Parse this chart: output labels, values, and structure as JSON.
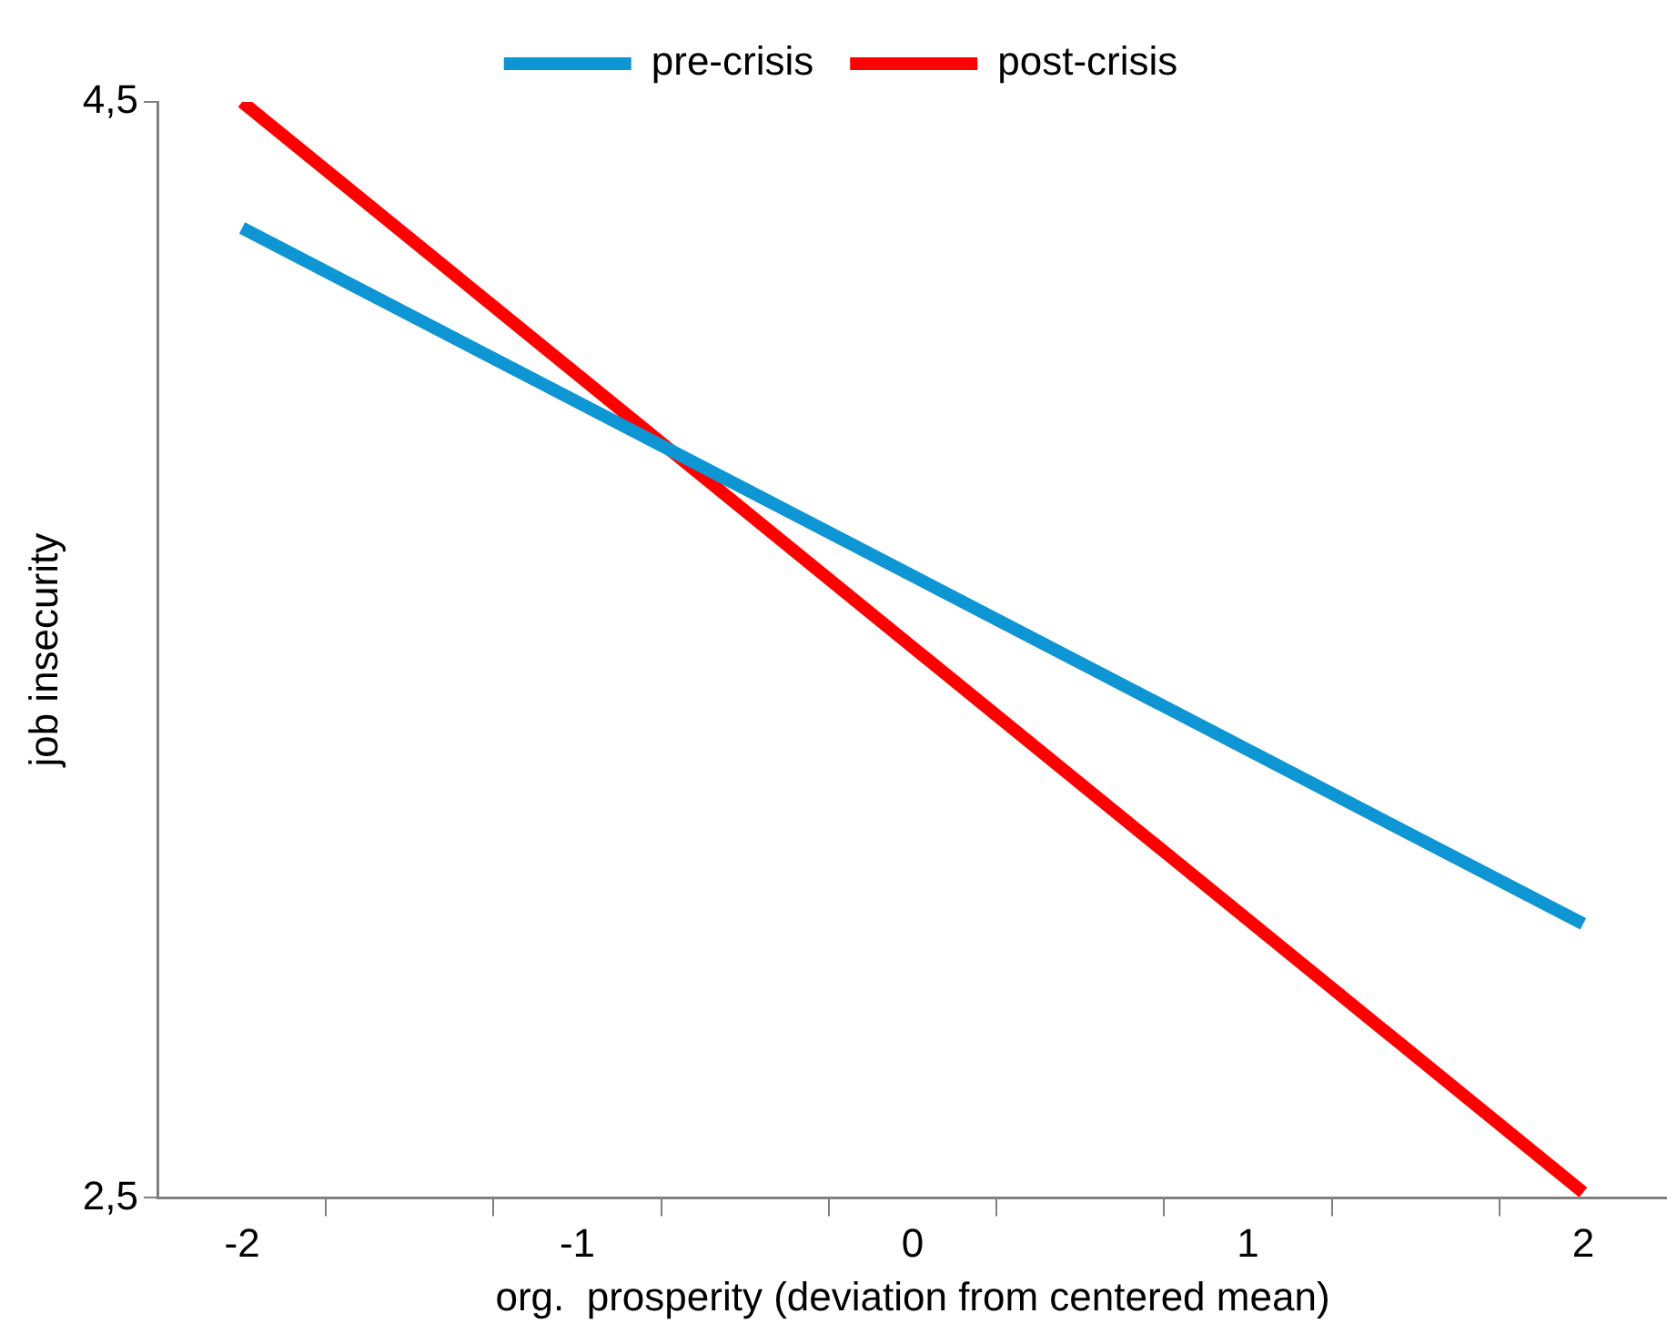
{
  "chart_data": {
    "type": "line",
    "xlabel": "org.  prosperity (deviation from centered mean)",
    "ylabel": "job insecurity",
    "x": [
      -2,
      2
    ],
    "series": [
      {
        "name": "pre-crisis",
        "color": "#0e95d3",
        "values": [
          4.27,
          3.0
        ]
      },
      {
        "name": "post-crisis",
        "color": "#ff0000",
        "values": [
          4.5,
          2.51
        ]
      }
    ],
    "xlim": [
      -2.25,
      2.25
    ],
    "xticks": [
      {
        "value": -2,
        "label": "-2"
      },
      {
        "value": -1,
        "label": "-1"
      },
      {
        "value": 0,
        "label": "0"
      },
      {
        "value": 1,
        "label": "1"
      },
      {
        "value": 2,
        "label": "2"
      },
      {
        "value": -1.75,
        "label": null
      },
      {
        "value": -1.25,
        "label": null
      },
      {
        "value": -0.75,
        "label": null
      },
      {
        "value": -0.25,
        "label": null
      },
      {
        "value": 0.25,
        "label": null
      },
      {
        "value": 0.75,
        "label": null
      },
      {
        "value": 1.25,
        "label": null
      },
      {
        "value": 1.75,
        "label": null
      }
    ],
    "ylim": [
      2.5,
      4.5
    ],
    "yticks": [
      {
        "value": 2.5,
        "label": "2,5"
      },
      {
        "value": 4.5,
        "label": "4,5"
      }
    ],
    "grid": false,
    "legend": "top",
    "marker": "none",
    "line_style": "solid"
  }
}
